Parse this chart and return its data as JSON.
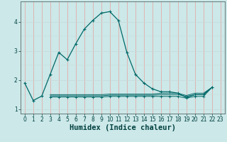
{
  "xlabel": "Humidex (Indice chaleur)",
  "bg_color": "#cce8e8",
  "grid_color_v": "#e8a0a0",
  "grid_color_h": "#c8d8d8",
  "line_color": "#006868",
  "xlim": [
    -0.5,
    23.5
  ],
  "ylim": [
    0.85,
    4.7
  ],
  "x": [
    0,
    1,
    2,
    3,
    4,
    5,
    6,
    7,
    8,
    9,
    10,
    11,
    12,
    13,
    14,
    15,
    16,
    17,
    18,
    19,
    20,
    21,
    22,
    23
  ],
  "y_main": [
    1.9,
    1.3,
    1.45,
    2.2,
    2.95,
    2.7,
    3.25,
    3.75,
    4.05,
    4.3,
    4.35,
    4.05,
    2.95,
    2.2,
    1.9,
    1.7,
    1.6,
    1.6,
    1.55,
    1.4,
    1.5,
    1.5,
    1.75,
    null
  ],
  "y_low1": [
    null,
    null,
    null,
    1.42,
    1.42,
    1.42,
    1.42,
    1.42,
    1.42,
    1.42,
    1.44,
    1.44,
    1.44,
    1.44,
    1.44,
    1.44,
    1.44,
    1.44,
    1.44,
    1.38,
    1.44,
    1.44,
    1.75,
    null
  ],
  "y_low2": [
    null,
    null,
    null,
    1.46,
    1.46,
    1.46,
    1.46,
    1.46,
    1.46,
    1.46,
    1.48,
    1.48,
    1.48,
    1.48,
    1.48,
    1.48,
    1.5,
    1.5,
    1.5,
    1.44,
    1.5,
    1.5,
    1.75,
    null
  ],
  "y_low3": [
    null,
    null,
    null,
    1.5,
    1.5,
    1.5,
    1.5,
    1.5,
    1.5,
    1.5,
    1.52,
    1.52,
    1.52,
    1.52,
    1.52,
    1.52,
    1.55,
    1.55,
    1.55,
    1.47,
    1.55,
    1.55,
    1.75,
    null
  ],
  "yticks": [
    1,
    2,
    3,
    4
  ],
  "xticks": [
    0,
    1,
    2,
    3,
    4,
    5,
    6,
    7,
    8,
    9,
    10,
    11,
    12,
    13,
    14,
    15,
    16,
    17,
    18,
    19,
    20,
    21,
    22,
    23
  ],
  "tick_fontsize": 5.5,
  "xlabel_fontsize": 7.5
}
